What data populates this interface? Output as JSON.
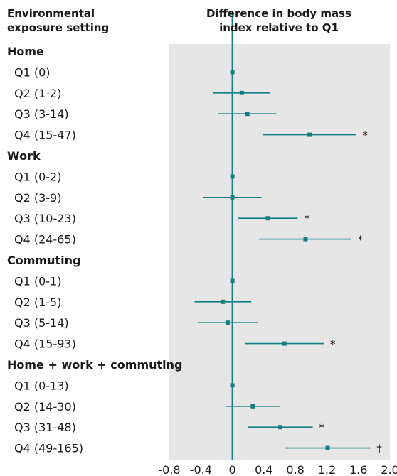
{
  "header": {
    "left_line1": "Environmental",
    "left_line2": "exposure setting",
    "right_line1": "Difference in body mass",
    "right_line2": "index relative to Q1"
  },
  "colors": {
    "panel": "#e6e6e6",
    "accent": "#137f80",
    "text": "#1a1a1a"
  },
  "chart_data": {
    "type": "forest",
    "xlim": [
      -0.8,
      2.0
    ],
    "ticks": [
      -0.8,
      -0.4,
      0,
      0.4,
      0.8,
      1.2,
      1.6,
      2.0
    ],
    "tick_labels": [
      "-0.8",
      "-0.4",
      "0",
      "0.4",
      "0.8",
      "1.2",
      "1.6",
      "2.0"
    ],
    "reference_line": 0,
    "groups": [
      {
        "name": "Home",
        "rows": [
          {
            "label": "Q1 (0)",
            "est": 0.0,
            "lo": 0.0,
            "hi": 0.0,
            "mark": ""
          },
          {
            "label": "Q2 (1-2)",
            "est": 0.12,
            "lo": -0.24,
            "hi": 0.48,
            "mark": ""
          },
          {
            "label": "Q3 (3-14)",
            "est": 0.19,
            "lo": -0.18,
            "hi": 0.56,
            "mark": ""
          },
          {
            "label": "Q4 (15-47)",
            "est": 0.98,
            "lo": 0.39,
            "hi": 1.57,
            "mark": "*"
          }
        ]
      },
      {
        "name": "Work",
        "rows": [
          {
            "label": "Q1 (0-2)",
            "est": 0.0,
            "lo": 0.0,
            "hi": 0.0,
            "mark": ""
          },
          {
            "label": "Q2 (3-9)",
            "est": 0.0,
            "lo": -0.37,
            "hi": 0.37,
            "mark": ""
          },
          {
            "label": "Q3 (10-23)",
            "est": 0.45,
            "lo": 0.07,
            "hi": 0.83,
            "mark": "*"
          },
          {
            "label": "Q4 (24-65)",
            "est": 0.93,
            "lo": 0.34,
            "hi": 1.51,
            "mark": "*"
          }
        ]
      },
      {
        "name": "Commuting",
        "rows": [
          {
            "label": "Q1 (0-1)",
            "est": 0.0,
            "lo": 0.0,
            "hi": 0.0,
            "mark": ""
          },
          {
            "label": "Q2 (1-5)",
            "est": -0.12,
            "lo": -0.48,
            "hi": 0.24,
            "mark": ""
          },
          {
            "label": "Q3 (5-14)",
            "est": -0.06,
            "lo": -0.44,
            "hi": 0.32,
            "mark": ""
          },
          {
            "label": "Q4 (15-93)",
            "est": 0.66,
            "lo": 0.16,
            "hi": 1.16,
            "mark": "*"
          }
        ]
      },
      {
        "name": "Home + work + commuting",
        "rows": [
          {
            "label": "Q1 (0-13)",
            "est": 0.0,
            "lo": 0.0,
            "hi": 0.0,
            "mark": ""
          },
          {
            "label": "Q2 (14-30)",
            "est": 0.26,
            "lo": -0.09,
            "hi": 0.61,
            "mark": ""
          },
          {
            "label": "Q3 (31-48)",
            "est": 0.61,
            "lo": 0.2,
            "hi": 1.02,
            "mark": "*"
          },
          {
            "label": "Q4 (49-165)",
            "est": 1.21,
            "lo": 0.67,
            "hi": 1.75,
            "mark": "†"
          }
        ]
      }
    ]
  }
}
